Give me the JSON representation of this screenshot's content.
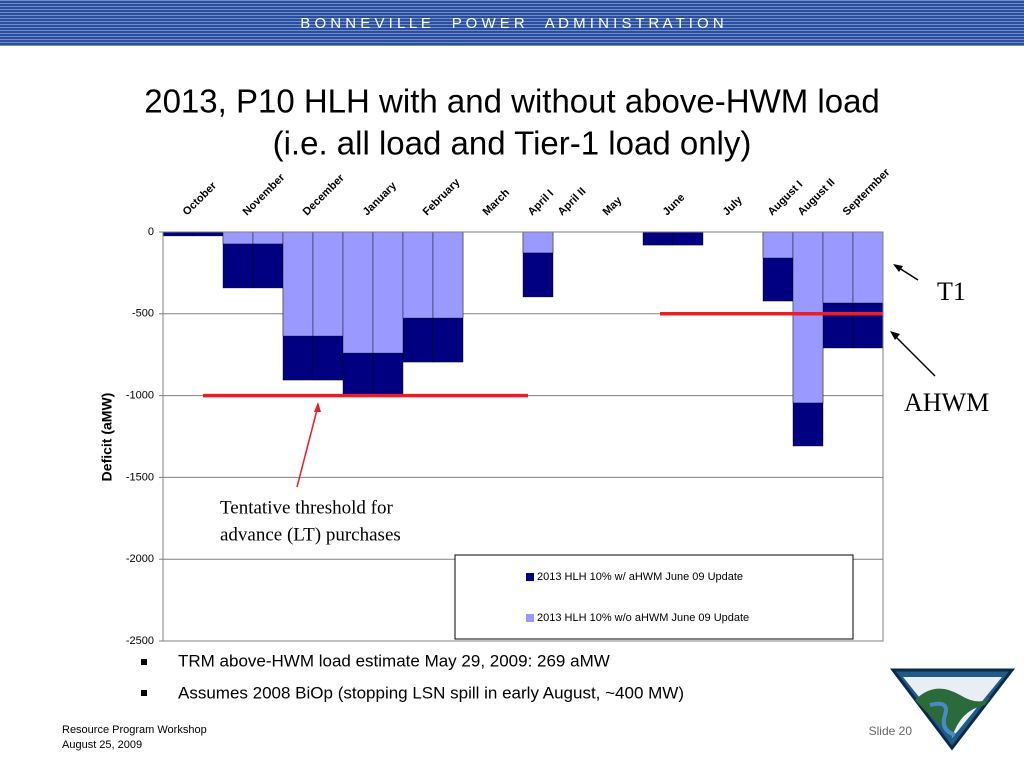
{
  "header": "B O N N E V I L L E     P O W E R     A D M I N I S T R A T I O N",
  "chart_data": {
    "type": "bar",
    "title": [
      "2013, P10 HLH with and without above-HWM load",
      "(i.e. all load and Tier-1 load only)"
    ],
    "ylabel": "Deficit (aMW)",
    "categories": [
      "October",
      null,
      "November",
      null,
      "December",
      null,
      "January",
      null,
      "February",
      null,
      "March",
      null,
      "April I",
      "April II",
      "May",
      null,
      "June",
      null,
      "July",
      null,
      "August I",
      "August II",
      "Septermber",
      null
    ],
    "series": [
      {
        "name": "2013 HLH 10% w/ aHWM June 09 Update",
        "color": "#000080",
        "values": [
          -24,
          -24,
          -342,
          -342,
          -905,
          -905,
          -990,
          -990,
          -795,
          -795,
          0,
          0,
          -397,
          0,
          0,
          0,
          -80,
          -80,
          0,
          0,
          -422,
          -1308,
          -709,
          -709
        ]
      },
      {
        "name": "2013 HLH 10% w/o aHWM June 09 Update",
        "color": "#9999ff",
        "values": [
          0,
          0,
          -73,
          -73,
          -636,
          -636,
          -740,
          -740,
          -526,
          -526,
          0,
          0,
          -128,
          0,
          0,
          0,
          0,
          0,
          0,
          0,
          -159,
          -1045,
          -434,
          -434
        ]
      }
    ],
    "ylim": [
      -2500,
      0
    ],
    "yticks": [
      0,
      -500,
      -1000,
      -1500,
      -2000,
      -2500
    ],
    "grid": true,
    "reference_lines": [
      {
        "value": -1000,
        "color": "#ee1c25"
      },
      {
        "value": -500,
        "color": "#ee1c25"
      }
    ],
    "annotations": [
      "Tentative threshold for advance (LT) purchases",
      "T1",
      "AHWM"
    ]
  },
  "bullets": [
    "TRM above-HWM load estimate May 29, 2009: 269 aMW",
    "Assumes 2008 BiOp (stopping LSN spill in early August, ~400 MW)"
  ],
  "footer": {
    "left": [
      "Resource Program Workshop",
      "August 25, 2009"
    ],
    "slide": "Slide 20"
  }
}
